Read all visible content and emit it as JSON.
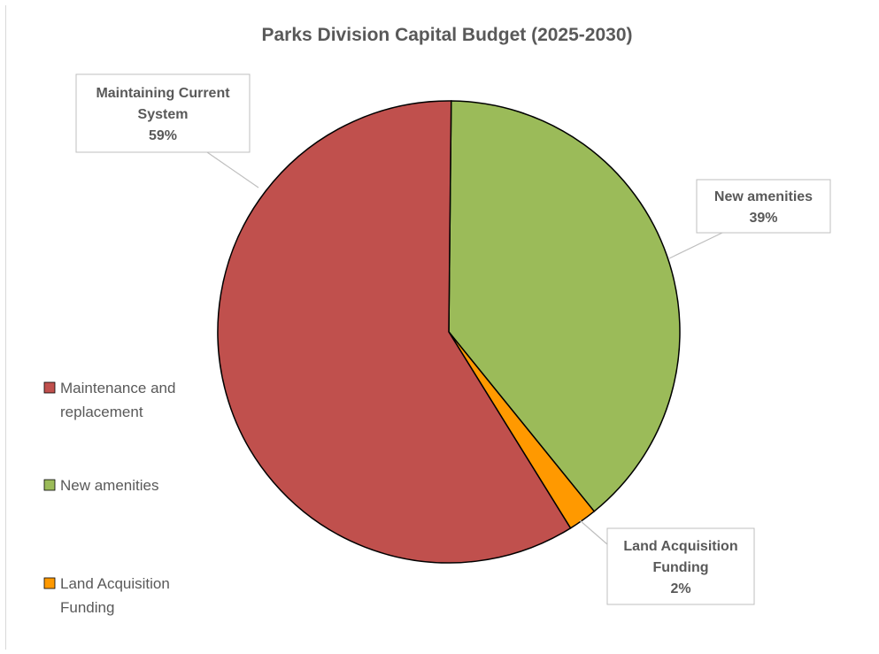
{
  "chart_data": {
    "type": "pie",
    "title": "Parks Division Capital Budget (2025-2030)",
    "slices": [
      {
        "name": "Maintenance and replacement",
        "value": 59,
        "color": "#c0504d",
        "label_lines": [
          "Maintaining Current",
          "System",
          "59%"
        ]
      },
      {
        "name": "New amenities",
        "value": 39,
        "color": "#9bbb59",
        "label_lines": [
          "New amenities",
          "39%"
        ]
      },
      {
        "name": "Land Acquisition Funding",
        "value": 2,
        "color": "#ff9900",
        "label_lines": [
          "Land Acquisition",
          "Funding",
          "2%"
        ]
      }
    ],
    "legend": {
      "position": "left",
      "items": [
        {
          "lines": [
            "Maintenance and",
            "replacement"
          ],
          "color": "#c0504d"
        },
        {
          "lines": [
            "New amenities"
          ],
          "color": "#9bbb59"
        },
        {
          "lines": [
            "Land Acquisition",
            "Funding"
          ],
          "color": "#ff9900"
        }
      ]
    }
  }
}
